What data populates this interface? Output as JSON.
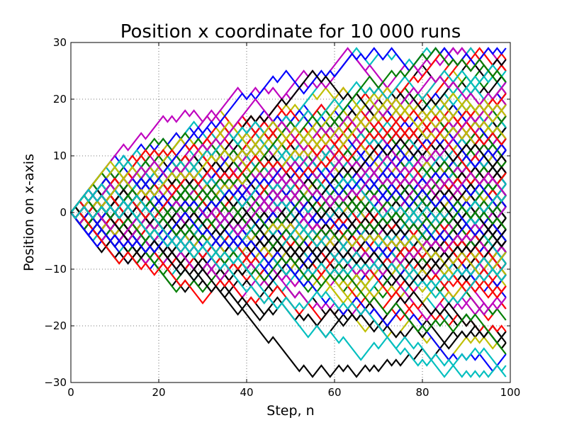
{
  "chart_data": {
    "type": "line",
    "title": "Position x coordinate for 10 000 runs",
    "xlabel": "Step, n",
    "ylabel": "Position on x-axis",
    "xlim": [
      0,
      100
    ],
    "ylim": [
      -30,
      30
    ],
    "xticks": [
      0,
      20,
      40,
      60,
      80,
      100
    ],
    "yticks": [
      -30,
      -20,
      -10,
      0,
      10,
      20,
      30
    ],
    "xtick_labels": [
      "0",
      "20",
      "40",
      "60",
      "80",
      "100"
    ],
    "ytick_labels": [
      "−30",
      "−20",
      "−10",
      "0",
      "10",
      "20",
      "30"
    ],
    "grid": true,
    "legend": "none",
    "n_runs": 10000,
    "n_steps": 99,
    "step_size": 1,
    "start_value": 0,
    "colors": [
      "#0000ff",
      "#008000",
      "#ff0000",
      "#00bfbf",
      "#bf00bf",
      "#bfbf00",
      "#000000"
    ],
    "final_value_range": [
      -28,
      29
    ],
    "series": [
      {
        "final": 29,
        "color": "#0000ff"
      },
      {
        "final": 28,
        "color": "#000000"
      },
      {
        "final": 25,
        "color": "#00bfbf"
      },
      {
        "final": 24,
        "color": "#008000"
      },
      {
        "final": 22,
        "color": "#bf00bf"
      },
      {
        "final": 21,
        "color": "#ff0000"
      },
      {
        "final": 20,
        "color": "#bfbf00"
      },
      {
        "final": -20,
        "color": "#ff0000"
      },
      {
        "final": -22,
        "color": "#000000"
      },
      {
        "final": -25,
        "color": "#0000ff"
      },
      {
        "final": -26,
        "color": "#008000"
      },
      {
        "final": -27,
        "color": "#00bfbf"
      },
      {
        "final": -28,
        "color": "#00bfbf"
      }
    ]
  }
}
